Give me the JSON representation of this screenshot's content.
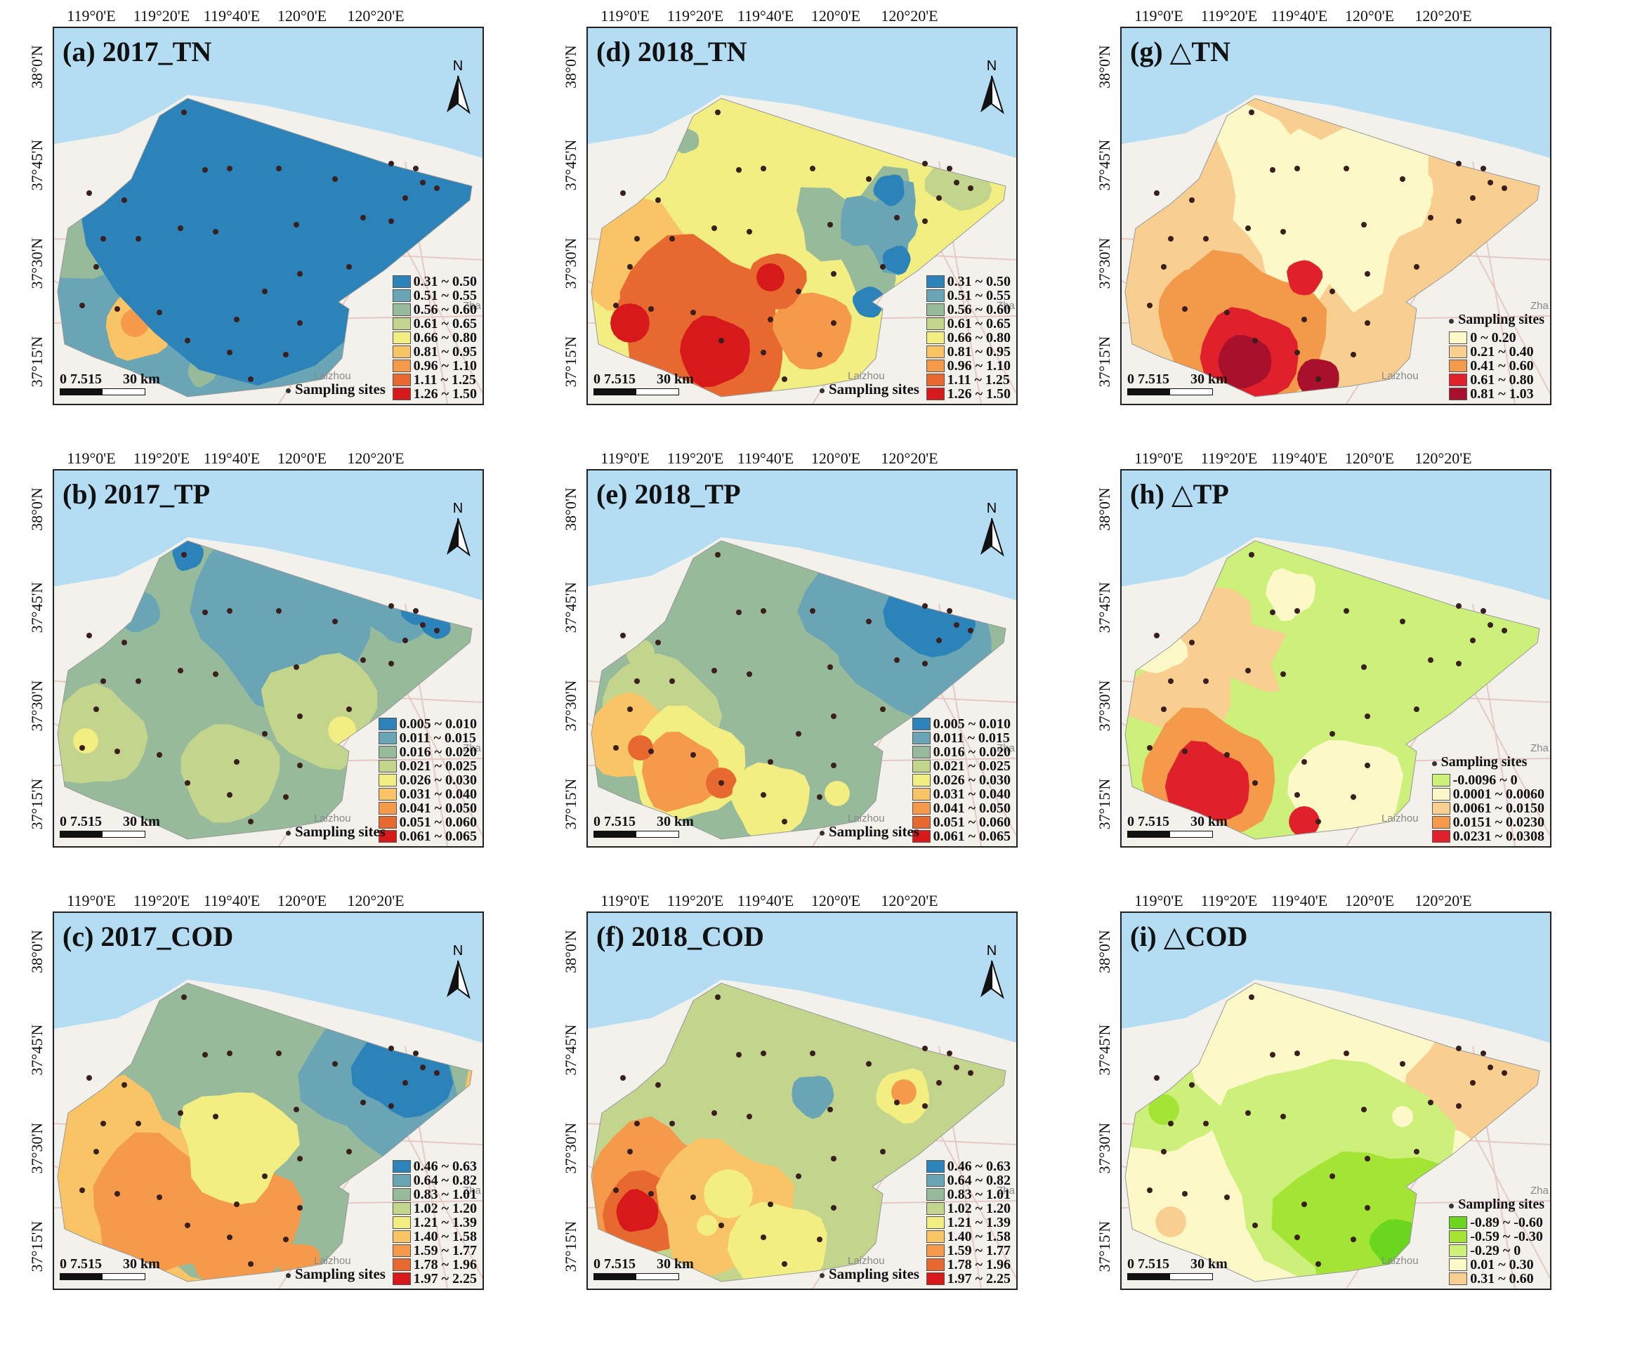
{
  "longitude_labels": [
    "119°0'E",
    "119°20'E",
    "119°40'E",
    "120°0'E",
    "120°20'E"
  ],
  "latitude_labels": [
    "38°0'N",
    "37°45'N",
    "37°30'N",
    "37°15'N"
  ],
  "sampling_sites_label": "Sampling sites",
  "north_label": "N",
  "scale_bar": {
    "ticks": "0 7.515",
    "end": "30 km"
  },
  "place_labels": {
    "laizhou": "Laizhou",
    "zha": "Zha"
  },
  "legends": {
    "TN": {
      "ranges": [
        "0.31 ~ 0.50",
        "0.51 ~ 0.55",
        "0.56 ~ 0.60",
        "0.61 ~ 0.65",
        "0.66 ~ 0.80",
        "0.81 ~ 0.95",
        "0.96 ~ 1.10",
        "1.11 ~ 1.25",
        "1.26 ~ 1.50"
      ],
      "colors": [
        "#2b83ba",
        "#6aa5b6",
        "#97bb9a",
        "#c3d48c",
        "#f2ee82",
        "#f8c466",
        "#f59a4a",
        "#e86930",
        "#d7191c"
      ]
    },
    "TP": {
      "ranges": [
        "0.005 ~ 0.010",
        "0.011 ~ 0.015",
        "0.016 ~ 0.020",
        "0.021 ~ 0.025",
        "0.026 ~ 0.030",
        "0.031 ~ 0.040",
        "0.041 ~ 0.050",
        "0.051 ~ 0.060",
        "0.061 ~ 0.065"
      ],
      "colors": [
        "#2b83ba",
        "#6aa5b6",
        "#97bb9a",
        "#c3d48c",
        "#f2ee82",
        "#f8c466",
        "#f59a4a",
        "#e86930",
        "#d7191c"
      ]
    },
    "COD": {
      "ranges": [
        "0.46 ~ 0.63",
        "0.64 ~ 0.82",
        "0.83 ~ 1.01",
        "1.02 ~ 1.20",
        "1.21 ~ 1.39",
        "1.40 ~ 1.58",
        "1.59 ~ 1.77",
        "1.78 ~ 1.96",
        "1.97 ~ 2.25"
      ],
      "colors": [
        "#2b83ba",
        "#6aa5b6",
        "#97bb9a",
        "#c3d48c",
        "#f2ee82",
        "#f8c466",
        "#f59a4a",
        "#e86930",
        "#d7191c"
      ]
    },
    "dTN": {
      "ranges": [
        "0 ~ 0.20",
        "0.21 ~ 0.40",
        "0.41 ~ 0.60",
        "0.61 ~ 0.80",
        "0.81 ~ 1.03"
      ],
      "colors": [
        "#fdf8c8",
        "#f8cf90",
        "#f39a4c",
        "#e0202a",
        "#a8102c"
      ]
    },
    "dTP": {
      "ranges": [
        "-0.0096 ~ 0",
        "0.0001 ~ 0.0060",
        "0.0061 ~ 0.0150",
        "0.0151 ~ 0.0230",
        "0.0231 ~ 0.0308"
      ],
      "colors": [
        "#cdf07a",
        "#fdf8c8",
        "#f8cf90",
        "#f59a4a",
        "#e0202a"
      ]
    },
    "dCOD": {
      "ranges": [
        "-0.89 ~ -0.60",
        "-0.59 ~ -0.30",
        "-0.29 ~ 0",
        "0.01 ~ 0.30",
        "0.31 ~ 0.60"
      ],
      "colors": [
        "#6ad61e",
        "#a4e435",
        "#cdf07a",
        "#fdf8c8",
        "#f8cf90"
      ]
    }
  },
  "panels": [
    {
      "id": "a",
      "title": "(a) 2017_TN",
      "legend": "TN",
      "north": true,
      "base": "#6aa5b6"
    },
    {
      "id": "d",
      "title": "(d) 2018_TN",
      "legend": "TN",
      "north": true,
      "base": "#f2ee82"
    },
    {
      "id": "g",
      "title": "(g) △TN",
      "legend": "dTN",
      "north": false,
      "base": "#f8cf90"
    },
    {
      "id": "b",
      "title": "(b) 2017_TP",
      "legend": "TP",
      "north": true,
      "base": "#97bb9a"
    },
    {
      "id": "e",
      "title": "(e) 2018_TP",
      "legend": "TP",
      "north": true,
      "base": "#97bb9a"
    },
    {
      "id": "h",
      "title": "(h) △TP",
      "legend": "dTP",
      "north": false,
      "base": "#cdf07a"
    },
    {
      "id": "c",
      "title": "(c) 2017_COD",
      "legend": "COD",
      "north": true,
      "base": "#f8c466"
    },
    {
      "id": "f",
      "title": "(f) 2018_COD",
      "legend": "COD",
      "north": true,
      "base": "#c3d48c"
    },
    {
      "id": "i",
      "title": "(i) △COD",
      "legend": "dCOD",
      "north": false,
      "base": "#fdf8c8"
    }
  ]
}
